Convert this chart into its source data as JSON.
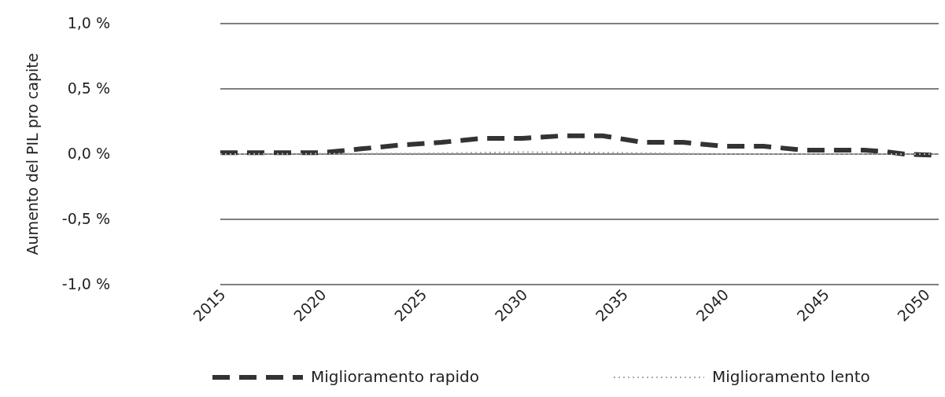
{
  "chart_data": {
    "type": "line",
    "ylabel": "Aumento del PIL pro capite",
    "xlim": [
      2015,
      2050.7
    ],
    "xticks": [
      2015,
      2020,
      2025,
      2030,
      2035,
      2040,
      2045,
      2050
    ],
    "ylim": [
      -1,
      1
    ],
    "yticks": [
      {
        "value": -1,
        "label": "-1,0 %"
      },
      {
        "value": -0.5,
        "label": "-0,5 %"
      },
      {
        "value": 0,
        "label": "0,0 %"
      },
      {
        "value": 0.5,
        "label": "0,5 %"
      },
      {
        "value": 1,
        "label": "1,0 %"
      }
    ],
    "grid": "y",
    "legend": "bottom",
    "series": [
      {
        "name": "Miglioramento rapido",
        "color": "#333333",
        "line_style": "dashed",
        "x": [
          2015,
          2020,
          2022,
          2024,
          2026,
          2028,
          2030,
          2032,
          2034,
          2036,
          2038,
          2040,
          2042,
          2044,
          2047,
          2048,
          2049,
          2050.7
        ],
        "values": [
          0.01,
          0.01,
          0.04,
          0.07,
          0.09,
          0.12,
          0.12,
          0.14,
          0.14,
          0.09,
          0.09,
          0.06,
          0.06,
          0.03,
          0.03,
          0.02,
          0,
          -0.01
        ]
      },
      {
        "name": "Miglioramento lento",
        "color": "#aaaaaa",
        "line_style": "dotted",
        "x": [
          2015,
          2025,
          2030,
          2035,
          2040,
          2050.7
        ],
        "values": [
          0,
          0.005,
          0.015,
          0.01,
          0,
          0
        ]
      }
    ]
  }
}
